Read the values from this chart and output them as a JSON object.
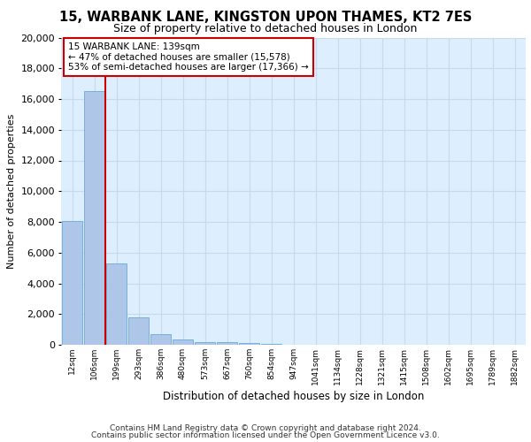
{
  "title_line1": "15, WARBANK LANE, KINGSTON UPON THAMES, KT2 7ES",
  "title_line2": "Size of property relative to detached houses in London",
  "xlabel": "Distribution of detached houses by size in London",
  "ylabel": "Number of detached properties",
  "bar_labels": [
    "12sqm",
    "106sqm",
    "199sqm",
    "293sqm",
    "386sqm",
    "480sqm",
    "573sqm",
    "667sqm",
    "760sqm",
    "854sqm",
    "947sqm",
    "1041sqm",
    "1134sqm",
    "1228sqm",
    "1321sqm",
    "1415sqm",
    "1508sqm",
    "1602sqm",
    "1695sqm",
    "1789sqm",
    "1882sqm"
  ],
  "bar_values": [
    8050,
    16500,
    5300,
    1800,
    680,
    330,
    185,
    145,
    115,
    60,
    0,
    0,
    0,
    0,
    0,
    0,
    0,
    0,
    0,
    0,
    0
  ],
  "bar_color": "#aec6e8",
  "bar_edge_color": "#5a9fd4",
  "vline_color": "#cc0000",
  "annotation_text": "15 WARBANK LANE: 139sqm\n← 47% of detached houses are smaller (15,578)\n53% of semi-detached houses are larger (17,366) →",
  "annotation_box_color": "#ffffff",
  "annotation_box_edge_color": "#cc0000",
  "ylim": [
    0,
    20000
  ],
  "yticks": [
    0,
    2000,
    4000,
    6000,
    8000,
    10000,
    12000,
    14000,
    16000,
    18000,
    20000
  ],
  "grid_color": "#c8daea",
  "background_color": "#ddeeff",
  "footer_line1": "Contains HM Land Registry data © Crown copyright and database right 2024.",
  "footer_line2": "Contains public sector information licensed under the Open Government Licence v3.0."
}
